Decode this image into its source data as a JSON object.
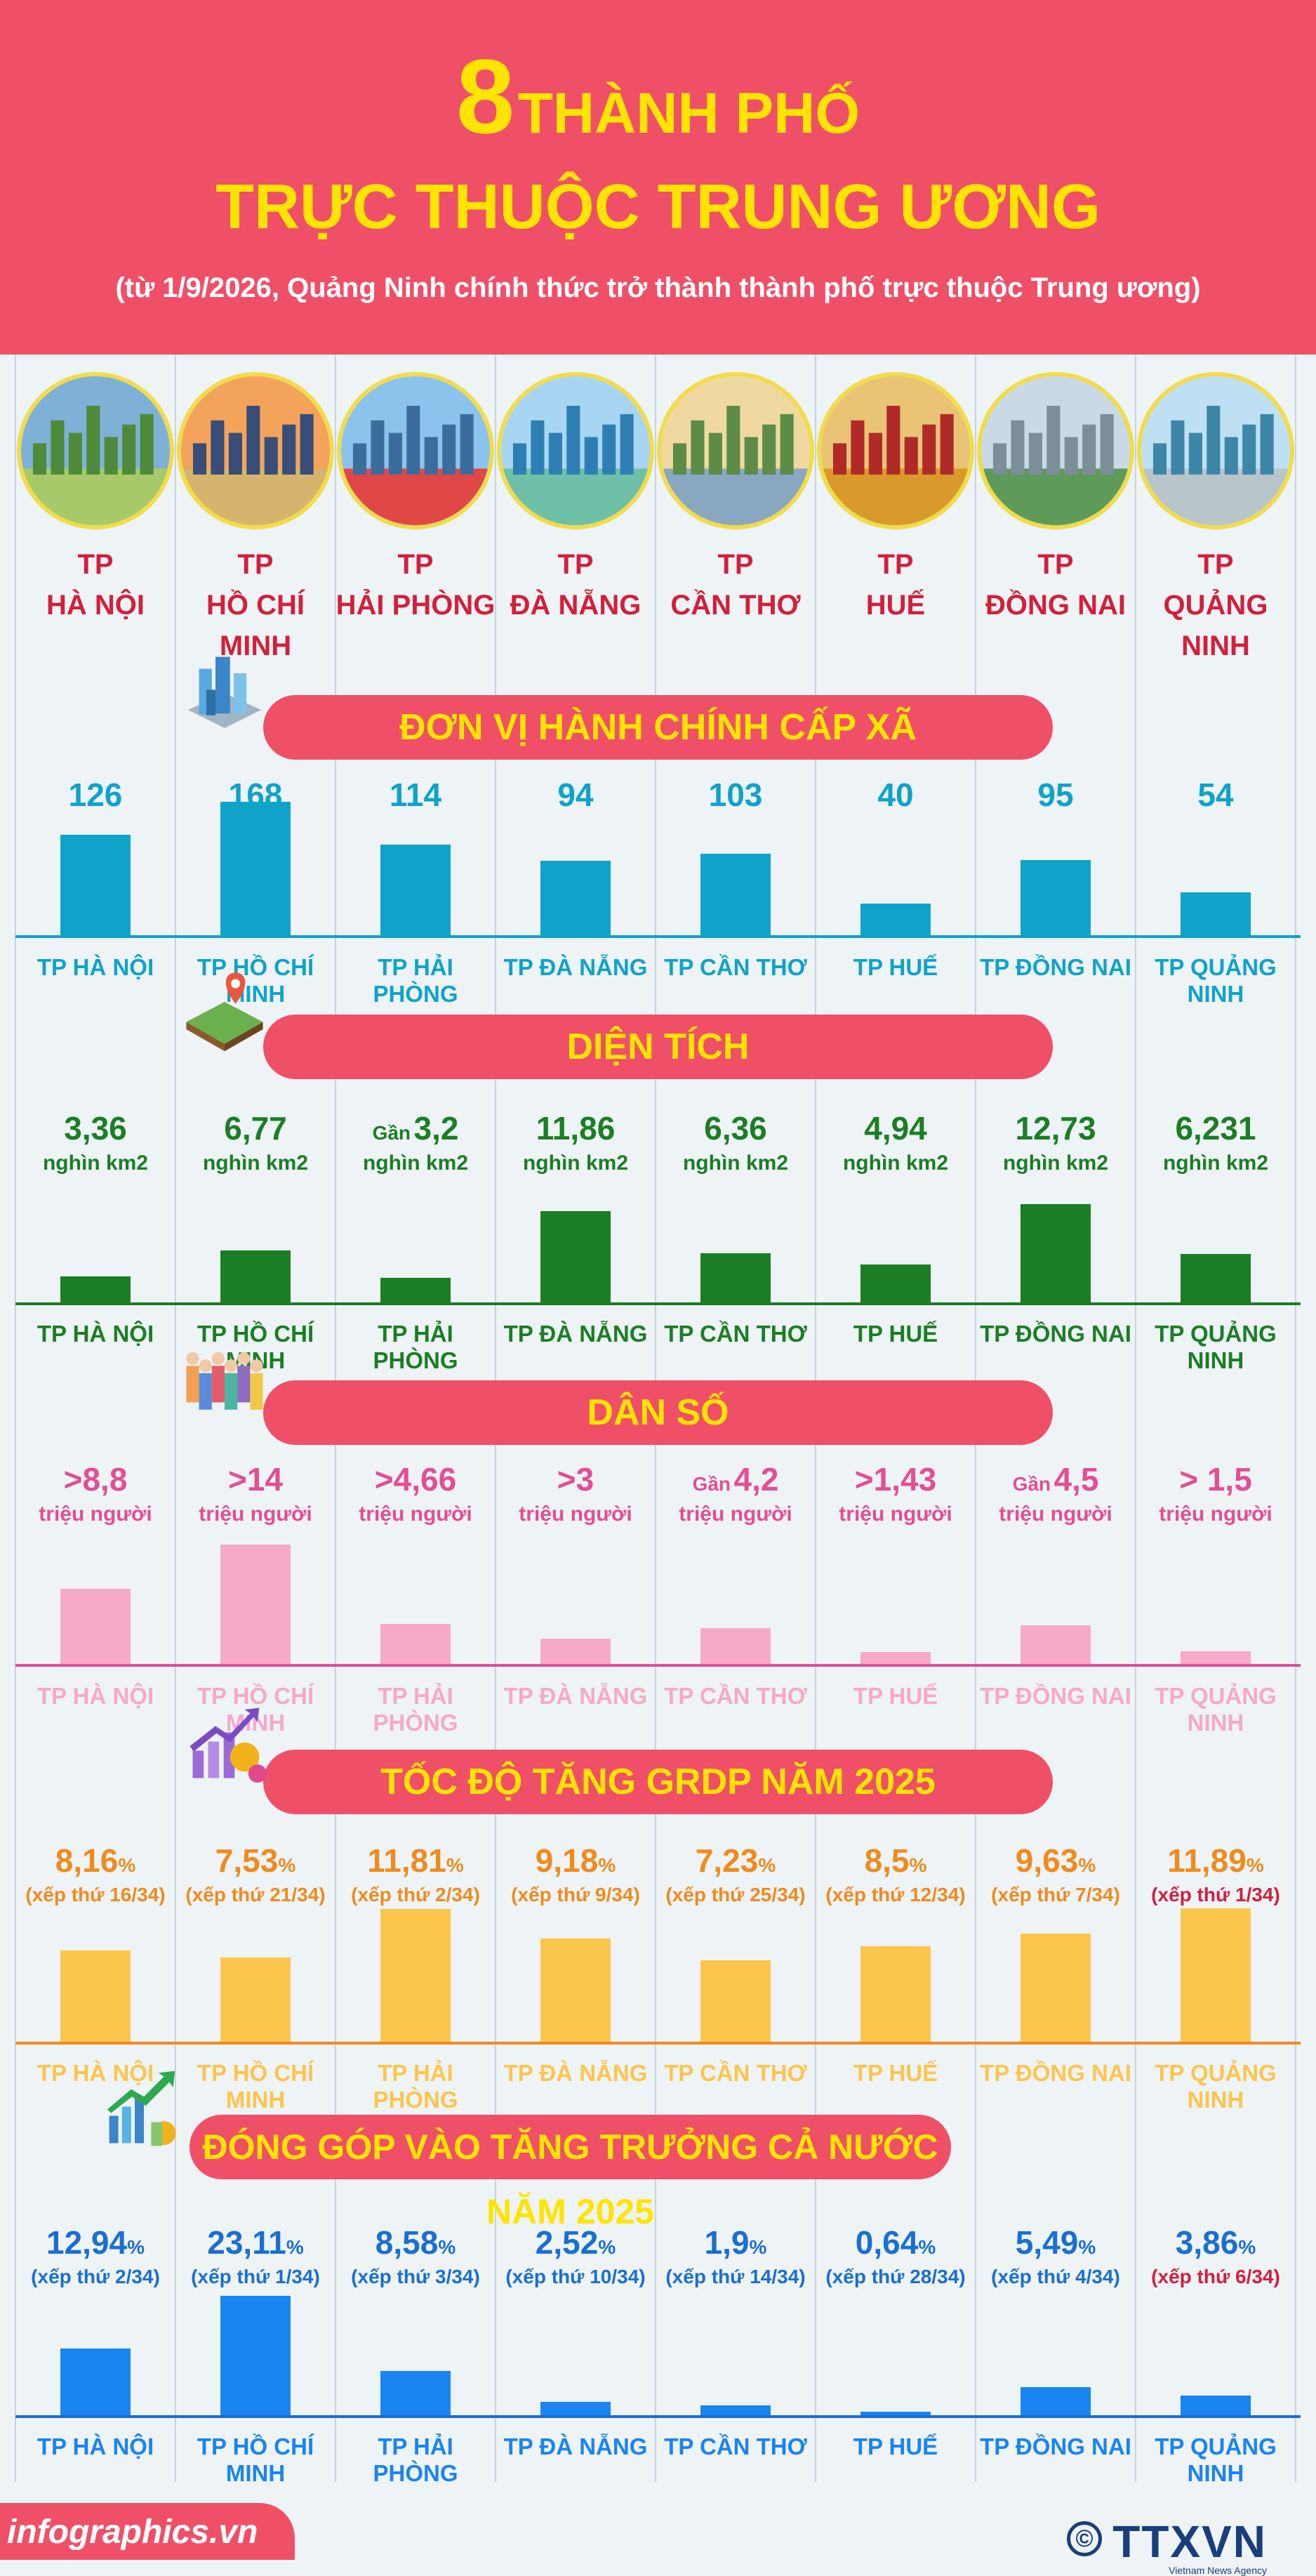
{
  "header": {
    "number": "8",
    "title_line1": "THÀNH PHỐ",
    "title_line2": "TRỰC THUỘC TRUNG ƯƠNG",
    "subtitle": "(từ 1/9/2026, Quảng Ninh chính thức trở thành thành phố trực thuộc Trung ương)"
  },
  "cities": [
    {
      "tp": "TP",
      "name": "HÀ NỘI",
      "label": "TP HÀ NỘI"
    },
    {
      "tp": "TP",
      "name": "HỒ CHÍ MINH",
      "label": "TP HỒ CHÍ MINH"
    },
    {
      "tp": "TP",
      "name": "HẢI PHÒNG",
      "label": "TP HẢI PHÒNG"
    },
    {
      "tp": "TP",
      "name": "ĐÀ NẴNG",
      "label": "TP ĐÀ NẴNG"
    },
    {
      "tp": "TP",
      "name": "CẦN THƠ",
      "label": "TP CẦN THƠ"
    },
    {
      "tp": "TP",
      "name": "HUẾ",
      "label": "TP HUẾ"
    },
    {
      "tp": "TP",
      "name": "ĐỒNG NAI",
      "label": "TP ĐỒNG NAI"
    },
    {
      "tp": "TP",
      "name": "QUẢNG NINH",
      "label": "TP QUẢNG NINH"
    }
  ],
  "sections": [
    {
      "title": "ĐƠN VỊ HÀNH CHÍNH CẤP XÃ",
      "icon": "city-buildings-icon",
      "color": "#0fa3c9",
      "values": [
        {
          "prefix": "",
          "main": "126",
          "pct": "",
          "unit": "",
          "rank": ""
        },
        {
          "prefix": "",
          "main": "168",
          "pct": "",
          "unit": "",
          "rank": ""
        },
        {
          "prefix": "",
          "main": "114",
          "pct": "",
          "unit": "",
          "rank": ""
        },
        {
          "prefix": "",
          "main": "94",
          "pct": "",
          "unit": "",
          "rank": ""
        },
        {
          "prefix": "",
          "main": "103",
          "pct": "",
          "unit": "",
          "rank": ""
        },
        {
          "prefix": "",
          "main": "40",
          "pct": "",
          "unit": "",
          "rank": ""
        },
        {
          "prefix": "",
          "main": "95",
          "pct": "",
          "unit": "",
          "rank": ""
        },
        {
          "prefix": "",
          "main": "54",
          "pct": "",
          "unit": "",
          "rank": ""
        }
      ]
    },
    {
      "title": "DIỆN TÍCH",
      "icon": "land-map-pin-icon",
      "color": "#1b7e24",
      "values": [
        {
          "prefix": "",
          "main": "3,36",
          "pct": "",
          "unit": "nghìn km2",
          "rank": ""
        },
        {
          "prefix": "",
          "main": "6,77",
          "pct": "",
          "unit": "nghìn km2",
          "rank": ""
        },
        {
          "prefix": "Gần",
          "main": "3,2",
          "pct": "",
          "unit": "nghìn km2",
          "rank": ""
        },
        {
          "prefix": "",
          "main": "11,86",
          "pct": "",
          "unit": "nghìn km2",
          "rank": ""
        },
        {
          "prefix": "",
          "main": "6,36",
          "pct": "",
          "unit": "nghìn km2",
          "rank": ""
        },
        {
          "prefix": "",
          "main": "4,94",
          "pct": "",
          "unit": "nghìn km2",
          "rank": ""
        },
        {
          "prefix": "",
          "main": "12,73",
          "pct": "",
          "unit": "nghìn km2",
          "rank": ""
        },
        {
          "prefix": "",
          "main": "6,231",
          "pct": "",
          "unit": "nghìn km2",
          "rank": ""
        }
      ]
    },
    {
      "title": "DÂN SỐ",
      "icon": "people-crowd-icon",
      "color": "#e24f93",
      "bar_color": "#f6a9c8",
      "values": [
        {
          "prefix": "",
          "main": ">8,8",
          "pct": "",
          "unit": "triệu người",
          "rank": ""
        },
        {
          "prefix": "",
          "main": ">14",
          "pct": "",
          "unit": "triệu người",
          "rank": ""
        },
        {
          "prefix": "",
          "main": ">4,66",
          "pct": "",
          "unit": "triệu người",
          "rank": ""
        },
        {
          "prefix": "",
          "main": ">3",
          "pct": "",
          "unit": "triệu người",
          "rank": ""
        },
        {
          "prefix": "Gần",
          "main": "4,2",
          "pct": "",
          "unit": "triệu người",
          "rank": ""
        },
        {
          "prefix": "",
          "main": ">1,43",
          "pct": "",
          "unit": "triệu người",
          "rank": ""
        },
        {
          "prefix": "Gần",
          "main": "4,5",
          "pct": "",
          "unit": "triệu người",
          "rank": ""
        },
        {
          "prefix": "",
          "main": "> 1,5",
          "pct": "",
          "unit": "triệu người",
          "rank": ""
        }
      ]
    },
    {
      "title": "TỐC ĐỘ TĂNG GRDP NĂM 2025",
      "icon": "growth-coin-icon",
      "color": "#ef8b1d",
      "bar_color": "#fcc54c",
      "values": [
        {
          "prefix": "",
          "main": "8,16",
          "pct": "%",
          "unit": "",
          "rank": "(xếp thứ 16/34)"
        },
        {
          "prefix": "",
          "main": "7,53",
          "pct": "%",
          "unit": "",
          "rank": "(xếp thứ 21/34)"
        },
        {
          "prefix": "",
          "main": "11,81",
          "pct": "%",
          "unit": "",
          "rank": "(xếp thứ 2/34)"
        },
        {
          "prefix": "",
          "main": "9,18",
          "pct": "%",
          "unit": "",
          "rank": "(xếp thứ 9/34)"
        },
        {
          "prefix": "",
          "main": "7,23",
          "pct": "%",
          "unit": "",
          "rank": "(xếp thứ 25/34)"
        },
        {
          "prefix": "",
          "main": "8,5",
          "pct": "%",
          "unit": "",
          "rank": "(xếp thứ 12/34)"
        },
        {
          "prefix": "",
          "main": "9,63",
          "pct": "%",
          "unit": "",
          "rank": "(xếp thứ 7/34)"
        },
        {
          "prefix": "",
          "main": "11,89",
          "pct": "%",
          "unit": "",
          "rank": "(xếp thứ 1/34)"
        }
      ]
    },
    {
      "title": "ĐÓNG GÓP VÀO TĂNG TRƯỞNG CẢ NƯỚC NĂM 2025",
      "icon": "growth-chart-icon",
      "color": "#1a6fd0",
      "bar_color": "#1a84f0",
      "values": [
        {
          "prefix": "",
          "main": "12,94",
          "pct": "%",
          "unit": "",
          "rank": "(xếp thứ 2/34)"
        },
        {
          "prefix": "",
          "main": "23,11",
          "pct": "%",
          "unit": "",
          "rank": "(xếp thứ 1/34)"
        },
        {
          "prefix": "",
          "main": "8,58",
          "pct": "%",
          "unit": "",
          "rank": "(xếp thứ 3/34)"
        },
        {
          "prefix": "",
          "main": "2,52",
          "pct": "%",
          "unit": "",
          "rank": "(xếp thứ 10/34)"
        },
        {
          "prefix": "",
          "main": "1,9",
          "pct": "%",
          "unit": "",
          "rank": "(xếp thứ 14/34)"
        },
        {
          "prefix": "",
          "main": "0,64",
          "pct": "%",
          "unit": "",
          "rank": "(xếp thứ 28/34)"
        },
        {
          "prefix": "",
          "main": "5,49",
          "pct": "%",
          "unit": "",
          "rank": "(xếp thứ 4/34)"
        },
        {
          "prefix": "",
          "main": "3,86",
          "pct": "%",
          "unit": "",
          "rank": "(xếp thứ 6/34)"
        }
      ]
    }
  ],
  "chart_data": [
    {
      "type": "bar",
      "title": "ĐƠN VỊ HÀNH CHÍNH CẤP XÃ",
      "categories": [
        "TP HÀ NỘI",
        "TP HỒ CHÍ MINH",
        "TP HẢI PHÒNG",
        "TP ĐÀ NẴNG",
        "TP CẦN THƠ",
        "TP HUẾ",
        "TP ĐỒNG NAI",
        "TP QUẢNG NINH"
      ],
      "values": [
        126,
        168,
        114,
        94,
        103,
        40,
        95,
        54
      ]
    },
    {
      "type": "bar",
      "title": "DIỆN TÍCH",
      "categories": [
        "TP HÀ NỘI",
        "TP HỒ CHÍ MINH",
        "TP HẢI PHÒNG",
        "TP ĐÀ NẴNG",
        "TP CẦN THƠ",
        "TP HUẾ",
        "TP ĐỒNG NAI",
        "TP QUẢNG NINH"
      ],
      "values": [
        3.36,
        6.77,
        3.2,
        11.86,
        6.36,
        4.94,
        12.73,
        6.231
      ]
    },
    {
      "type": "bar",
      "title": "DÂN SỐ",
      "categories": [
        "TP HÀ NỘI",
        "TP HỒ CHÍ MINH",
        "TP HẢI PHÒNG",
        "TP ĐÀ NẴNG",
        "TP CẦN THƠ",
        "TP HUẾ",
        "TP ĐỒNG NAI",
        "TP QUẢNG NINH"
      ],
      "values": [
        8.8,
        14,
        4.66,
        3,
        4.2,
        1.43,
        4.5,
        1.5
      ]
    },
    {
      "type": "bar",
      "title": "TỐC ĐỘ TĂNG GRDP NĂM 2025",
      "categories": [
        "TP HÀ NỘI",
        "TP HỒ CHÍ MINH",
        "TP HẢI PHÒNG",
        "TP ĐÀ NẴNG",
        "TP CẦN THƠ",
        "TP HUẾ",
        "TP ĐỒNG NAI",
        "TP QUẢNG NINH"
      ],
      "values": [
        8.16,
        7.53,
        11.81,
        9.18,
        7.23,
        8.5,
        9.63,
        11.89
      ]
    },
    {
      "type": "bar",
      "title": "ĐÓNG GÓP VÀO TĂNG TRƯỞNG CẢ NƯỚC NĂM 2025",
      "categories": [
        "TP HÀ NỘI",
        "TP HỒ CHÍ MINH",
        "TP HẢI PHÒNG",
        "TP ĐÀ NẴNG",
        "TP CẦN THƠ",
        "TP HUẾ",
        "TP ĐỒNG NAI",
        "TP QUẢNG NINH"
      ],
      "values": [
        12.94,
        23.11,
        8.58,
        2.52,
        1.9,
        0.64,
        5.49,
        3.86
      ]
    }
  ],
  "footer": {
    "site": "infographics.vn",
    "copyright": "©",
    "agency_logo": "TTXVN",
    "agency_sub": "Vietnam News Agency"
  }
}
